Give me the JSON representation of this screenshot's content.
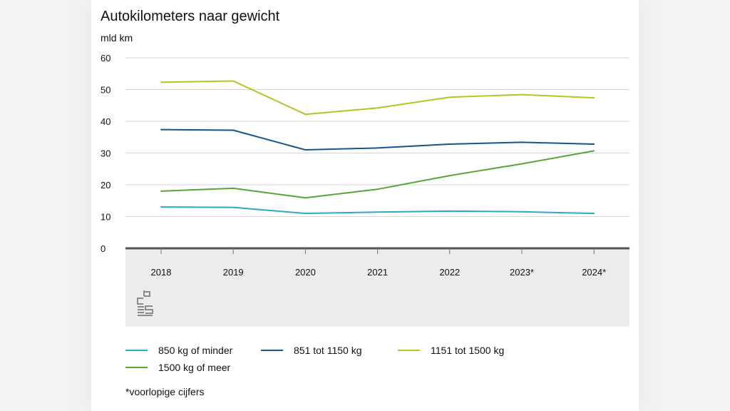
{
  "chart_data": {
    "type": "line",
    "title": "Autokilometers naar gewicht",
    "ylabel": "mld km",
    "xlabel": "",
    "ylim": [
      0,
      60
    ],
    "yticks": [
      0,
      10,
      20,
      30,
      40,
      50,
      60
    ],
    "categories": [
      "2018",
      "2019",
      "2020",
      "2021",
      "2022",
      "2023*",
      "2024*"
    ],
    "series": [
      {
        "name": "850 kg of minder",
        "color": "#2aa8c4",
        "values": [
          13.0,
          12.9,
          11.0,
          11.4,
          11.7,
          11.5,
          11.0
        ]
      },
      {
        "name": "851 tot 1150 kg",
        "color": "#16558c",
        "values": [
          37.4,
          37.2,
          31.0,
          31.6,
          32.8,
          33.4,
          32.8
        ]
      },
      {
        "name": "1151 tot 1500 kg",
        "color": "#b2c721",
        "values": [
          52.3,
          52.7,
          42.2,
          44.2,
          47.6,
          48.4,
          47.4
        ]
      },
      {
        "name": "1500 kg of meer",
        "color": "#58a732",
        "values": [
          18.0,
          18.9,
          15.9,
          18.6,
          22.9,
          26.6,
          30.7
        ]
      }
    ],
    "footnote": "*voorlopige cijfers",
    "grid": true,
    "legend_position": "bottom"
  },
  "logo": {
    "name": "cbs"
  }
}
